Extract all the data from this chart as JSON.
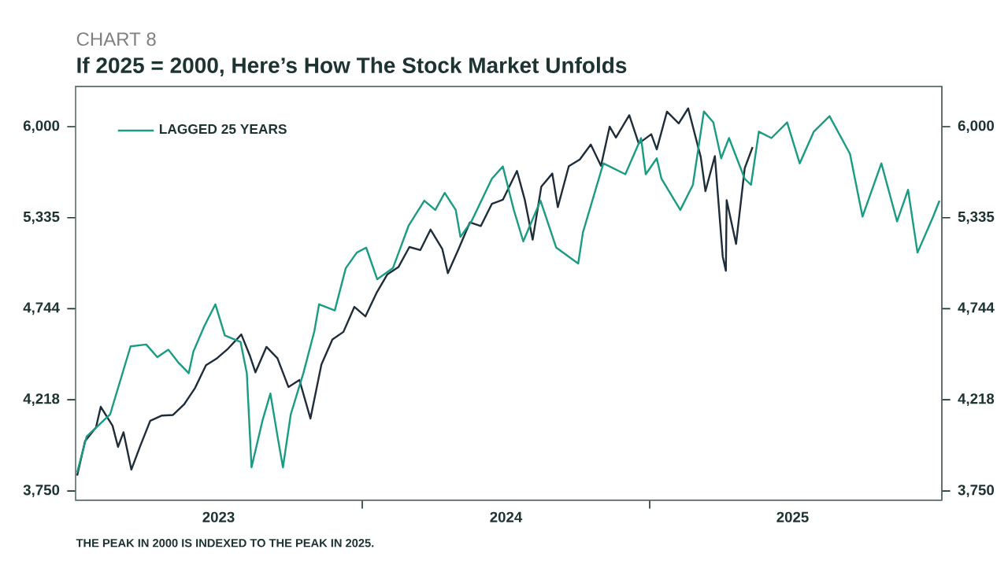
{
  "chart_data": {
    "type": "line",
    "subtitle": "CHART 8",
    "title": "If 2025 = 2000, Here’s How The Stock Market Unfolds",
    "annotations": [
      "THE PEAK IN 2000 IS INDEXED TO THE PEAK IN 2025."
    ],
    "log": true,
    "legend": "top left",
    "xlim": [
      "2023-01-01",
      "2026-01-08"
    ],
    "xticks": [
      {
        "value": "2023-07-02",
        "label": "2023"
      },
      {
        "value": "2024-01-01",
        "label": null
      },
      {
        "value": "2024-07-02",
        "label": "2024"
      },
      {
        "value": "2025-01-01",
        "label": null
      },
      {
        "value": "2025-07-02",
        "label": "2025"
      }
    ],
    "ylim": [
      3705,
      6320
    ],
    "yticks": [
      {
        "value": 3750,
        "label": "3,750"
      },
      {
        "value": 4218,
        "label": "4,218"
      },
      {
        "value": 4744,
        "label": "4,744"
      },
      {
        "value": 5335,
        "label": "5,335"
      },
      {
        "value": 6000,
        "label": "6,000"
      }
    ],
    "series": [
      {
        "color": "#1f2d3a",
        "x": [
          "2023-01-03",
          "2023-01-13",
          "2023-01-27",
          "2023-02-02",
          "2023-02-17",
          "2023-02-24",
          "2023-03-03",
          "2023-03-13",
          "2023-03-24",
          "2023-04-06",
          "2023-04-21",
          "2023-05-05",
          "2023-05-19",
          "2023-06-02",
          "2023-06-16",
          "2023-06-30",
          "2023-07-14",
          "2023-07-31",
          "2023-08-11",
          "2023-08-18",
          "2023-09-01",
          "2023-09-15",
          "2023-09-29",
          "2023-10-13",
          "2023-10-27",
          "2023-11-10",
          "2023-11-24",
          "2023-12-08",
          "2023-12-22",
          "2024-01-05",
          "2024-01-19",
          "2024-02-02",
          "2024-02-16",
          "2024-03-01",
          "2024-03-15",
          "2024-03-28",
          "2024-04-12",
          "2024-04-19",
          "2024-05-03",
          "2024-05-17",
          "2024-05-31",
          "2024-06-14",
          "2024-06-28",
          "2024-07-16",
          "2024-07-26",
          "2024-08-05",
          "2024-08-16",
          "2024-08-30",
          "2024-09-06",
          "2024-09-20",
          "2024-10-04",
          "2024-10-18",
          "2024-10-31",
          "2024-11-11",
          "2024-11-19",
          "2024-12-06",
          "2024-12-18",
          "2025-01-03",
          "2025-01-10",
          "2025-01-23",
          "2025-02-07",
          "2025-02-19",
          "2025-03-07",
          "2025-03-13",
          "2025-03-25",
          "2025-04-04",
          "2025-04-08",
          "2025-04-09",
          "2025-04-21",
          "2025-05-02",
          "2025-05-12"
        ],
        "values": [
          3825,
          3999,
          4070,
          4180,
          4079,
          3970,
          4045,
          3855,
          3971,
          4105,
          4133,
          4136,
          4192,
          4282,
          4410,
          4450,
          4505,
          4589,
          4464,
          4370,
          4516,
          4450,
          4288,
          4327,
          4117,
          4415,
          4559,
          4604,
          4755,
          4697,
          4840,
          4959,
          5005,
          5137,
          5117,
          5254,
          5123,
          4967,
          5128,
          5303,
          5278,
          5431,
          5460,
          5667,
          5459,
          5186,
          5554,
          5648,
          5408,
          5702,
          5751,
          5864,
          5705,
          6001,
          5917,
          6090,
          5872,
          5942,
          5827,
          6118,
          6026,
          6144,
          5770,
          5521,
          5777,
          5074,
          4982,
          5457,
          5158,
          5687,
          5844
        ]
      },
      {
        "name": "LAGGED 25 YEARS",
        "color": "#1a9c82",
        "x": [
          "2023-01-03",
          "2023-01-15",
          "2023-02-14",
          "2023-03-12",
          "2023-04-01",
          "2023-04-15",
          "2023-04-29",
          "2023-05-11",
          "2023-05-25",
          "2023-05-31",
          "2023-06-14",
          "2023-06-28",
          "2023-07-10",
          "2023-07-30",
          "2023-08-07",
          "2023-08-13",
          "2023-08-27",
          "2023-09-06",
          "2023-09-16",
          "2023-09-22",
          "2023-10-02",
          "2023-10-18",
          "2023-11-01",
          "2023-11-07",
          "2023-11-27",
          "2023-12-11",
          "2023-12-25",
          "2024-01-06",
          "2024-01-20",
          "2024-02-09",
          "2024-02-29",
          "2024-03-20",
          "2024-04-03",
          "2024-04-15",
          "2024-04-29",
          "2024-05-05",
          "2024-05-19",
          "2024-06-14",
          "2024-06-28",
          "2024-07-12",
          "2024-07-24",
          "2024-08-15",
          "2024-09-04",
          "2024-10-02",
          "2024-10-08",
          "2024-11-03",
          "2024-12-01",
          "2024-12-21",
          "2024-12-27",
          "2025-01-10",
          "2025-01-16",
          "2025-02-09",
          "2025-02-25",
          "2025-03-11",
          "2025-03-23",
          "2025-04-02",
          "2025-04-12",
          "2025-05-02",
          "2025-05-10",
          "2025-05-20",
          "2025-06-05",
          "2025-06-25",
          "2025-07-11",
          "2025-07-29",
          "2025-08-18",
          "2025-09-13",
          "2025-09-29",
          "2025-10-23",
          "2025-11-12",
          "2025-11-26",
          "2025-12-08",
          "2025-12-28",
          "2026-01-05"
        ],
        "values": [
          3842,
          4022,
          4140,
          4519,
          4530,
          4456,
          4500,
          4430,
          4365,
          4489,
          4640,
          4771,
          4583,
          4545,
          4365,
          3866,
          4107,
          4252,
          4002,
          3866,
          4140,
          4365,
          4608,
          4771,
          4733,
          4999,
          5100,
          5133,
          4928,
          4999,
          5280,
          5454,
          5389,
          5509,
          5389,
          5205,
          5310,
          5610,
          5700,
          5389,
          5175,
          5454,
          5133,
          5029,
          5235,
          5723,
          5643,
          5913,
          5643,
          5760,
          5610,
          5389,
          5566,
          6120,
          6034,
          5760,
          5913,
          5610,
          5566,
          5962,
          5913,
          6034,
          5723,
          5962,
          6083,
          5794,
          5343,
          5723,
          5310,
          5531,
          5100,
          5343,
          5454
        ]
      }
    ]
  }
}
